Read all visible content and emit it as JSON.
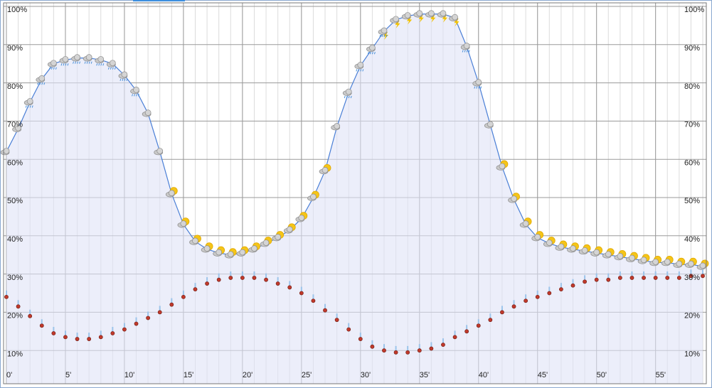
{
  "chart_data": {
    "type": "line",
    "x": [
      0,
      1,
      2,
      3,
      4,
      5,
      6,
      7,
      8,
      9,
      10,
      11,
      12,
      13,
      14,
      15,
      16,
      17,
      18,
      19,
      20,
      21,
      22,
      23,
      24,
      25,
      26,
      27,
      28,
      29,
      30,
      31,
      32,
      33,
      34,
      35,
      36,
      37,
      38,
      39,
      40,
      41,
      42,
      43,
      44,
      45,
      46,
      47,
      48,
      49,
      50,
      51,
      52,
      53,
      54,
      55,
      56,
      57,
      58,
      59
    ],
    "series": [
      {
        "color": "#4a7fd6",
        "values": [
          62,
          68,
          75,
          81,
          85,
          86,
          86.5,
          86.5,
          86,
          85,
          82,
          78,
          72,
          62,
          51,
          43,
          38.5,
          36.5,
          35.5,
          35,
          35.5,
          36.5,
          38,
          39.5,
          41.5,
          44.5,
          50,
          57,
          68.5,
          77.5,
          84.5,
          89,
          93.5,
          96.5,
          97.5,
          98,
          98,
          98,
          97,
          89.5,
          80,
          69,
          58,
          49.5,
          43,
          39.5,
          38,
          37,
          36.5,
          36,
          35.5,
          35,
          34.5,
          34,
          33.5,
          33,
          33,
          32.5,
          32.5,
          32
        ]
      },
      {
        "color": "#c0392b",
        "values": [
          24,
          21.5,
          19,
          16.5,
          14.5,
          13.5,
          13,
          13,
          13.5,
          14.5,
          15.5,
          17,
          18.5,
          20,
          22,
          24,
          26,
          27.5,
          28.5,
          29,
          29,
          29,
          28.5,
          27.5,
          26.5,
          25,
          23,
          20.5,
          18,
          15.5,
          13,
          11,
          10,
          9.5,
          9.5,
          10,
          10.5,
          11.5,
          13.5,
          15,
          16.5,
          18,
          20,
          21.5,
          23,
          24,
          25,
          26,
          27,
          28,
          28.5,
          28.5,
          29,
          29,
          29,
          29,
          29,
          29,
          29.5,
          29.5
        ]
      }
    ],
    "xlim": [
      0,
      59.3
    ],
    "xticks": [
      {
        "value": 0,
        "label": "0'"
      },
      {
        "value": 5,
        "label": "5'"
      },
      {
        "value": 10,
        "label": "10'"
      },
      {
        "value": 15,
        "label": "15'"
      },
      {
        "value": 20,
        "label": "20'"
      },
      {
        "value": 25,
        "label": "25'"
      },
      {
        "value": 30,
        "label": "30'"
      },
      {
        "value": 35,
        "label": "35'"
      },
      {
        "value": 40,
        "label": "40'"
      },
      {
        "value": 45,
        "label": "45'"
      },
      {
        "value": 50,
        "label": "50'"
      },
      {
        "value": 55,
        "label": "55'"
      }
    ],
    "ylim": [
      0,
      100
    ],
    "yticks": [
      {
        "value": 10,
        "label": "10%"
      },
      {
        "value": 20,
        "label": "20%"
      },
      {
        "value": 30,
        "label": "30%"
      },
      {
        "value": 40,
        "label": "40%"
      },
      {
        "value": 50,
        "label": "50%"
      },
      {
        "value": 60,
        "label": "60%"
      },
      {
        "value": 70,
        "label": "70%"
      },
      {
        "value": 80,
        "label": "80%"
      },
      {
        "value": 90,
        "label": "90%"
      },
      {
        "value": 100,
        "label": "100%"
      }
    ],
    "grid": true
  }
}
